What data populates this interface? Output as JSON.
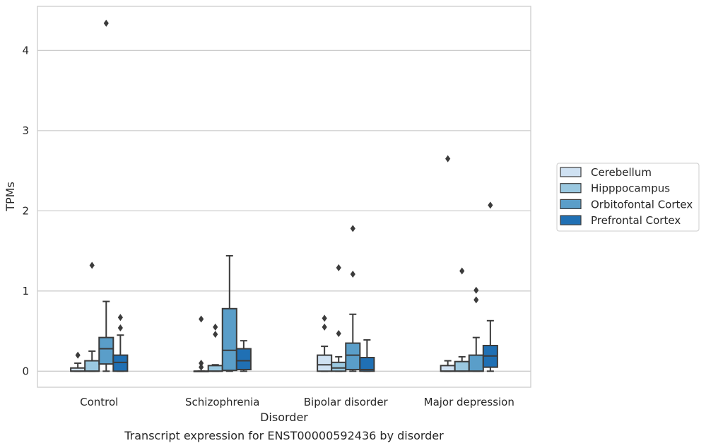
{
  "chart_data": {
    "type": "box",
    "xlabel": "Disorder",
    "ylabel": "TPMs",
    "caption": "Transcript expression for ENST00000592436 by disorder",
    "categories": [
      "Control",
      "Schizophrenia",
      "Bipolar disorder",
      "Major depression"
    ],
    "ylim": [
      -0.2,
      4.55
    ],
    "yticks": [
      0,
      1,
      2,
      3,
      4
    ],
    "grid": "horizontal",
    "legend_position": "right",
    "series": [
      {
        "name": "Cerebellum",
        "color": "#cfe1f2",
        "boxes": [
          {
            "whisker_low": 0.0,
            "q1": 0.0,
            "median": 0.0,
            "q3": 0.04,
            "whisker_high": 0.1,
            "outliers": [
              0.2
            ]
          },
          {
            "whisker_low": 0.0,
            "q1": 0.0,
            "median": 0.0,
            "q3": 0.0,
            "whisker_high": 0.0,
            "outliers": [
              0.65,
              0.1,
              0.05
            ]
          },
          {
            "whisker_low": 0.0,
            "q1": 0.0,
            "median": 0.08,
            "q3": 0.2,
            "whisker_high": 0.31,
            "outliers": [
              0.66,
              0.55
            ]
          },
          {
            "whisker_low": 0.0,
            "q1": 0.0,
            "median": 0.0,
            "q3": 0.07,
            "whisker_high": 0.13,
            "outliers": [
              2.65
            ]
          }
        ]
      },
      {
        "name": "Hipppocampus",
        "color": "#9ac8e0",
        "boxes": [
          {
            "whisker_low": 0.0,
            "q1": 0.0,
            "median": 0.0,
            "q3": 0.13,
            "whisker_high": 0.25,
            "outliers": [
              1.32
            ]
          },
          {
            "whisker_low": 0.0,
            "q1": 0.0,
            "median": 0.0,
            "q3": 0.07,
            "whisker_high": 0.08,
            "outliers": [
              0.55,
              0.46
            ]
          },
          {
            "whisker_low": 0.0,
            "q1": 0.0,
            "median": 0.04,
            "q3": 0.11,
            "whisker_high": 0.18,
            "outliers": [
              1.29,
              0.47
            ]
          },
          {
            "whisker_low": 0.0,
            "q1": 0.0,
            "median": 0.0,
            "q3": 0.12,
            "whisker_high": 0.18,
            "outliers": [
              1.25
            ]
          }
        ]
      },
      {
        "name": "Orbitofontal Cortex",
        "color": "#5a9ec9",
        "boxes": [
          {
            "whisker_low": 0.0,
            "q1": 0.09,
            "median": 0.28,
            "q3": 0.42,
            "whisker_high": 0.87,
            "outliers": [
              4.34
            ]
          },
          {
            "whisker_low": 0.0,
            "q1": 0.01,
            "median": 0.26,
            "q3": 0.78,
            "whisker_high": 1.44,
            "outliers": []
          },
          {
            "whisker_low": 0.0,
            "q1": 0.02,
            "median": 0.2,
            "q3": 0.35,
            "whisker_high": 0.71,
            "outliers": [
              1.78,
              1.21
            ]
          },
          {
            "whisker_low": 0.0,
            "q1": 0.0,
            "median": 0.0,
            "q3": 0.2,
            "whisker_high": 0.42,
            "outliers": [
              1.01,
              0.89
            ]
          }
        ]
      },
      {
        "name": "Prefrontal Cortex",
        "color": "#2070b4",
        "boxes": [
          {
            "whisker_low": 0.0,
            "q1": 0.0,
            "median": 0.11,
            "q3": 0.2,
            "whisker_high": 0.45,
            "outliers": [
              0.67,
              0.54
            ]
          },
          {
            "whisker_low": 0.0,
            "q1": 0.02,
            "median": 0.13,
            "q3": 0.28,
            "whisker_high": 0.38,
            "outliers": []
          },
          {
            "whisker_low": 0.0,
            "q1": 0.0,
            "median": 0.02,
            "q3": 0.17,
            "whisker_high": 0.39,
            "outliers": []
          },
          {
            "whisker_low": 0.0,
            "q1": 0.05,
            "median": 0.19,
            "q3": 0.32,
            "whisker_high": 0.63,
            "outliers": [
              2.07
            ]
          }
        ]
      }
    ]
  }
}
